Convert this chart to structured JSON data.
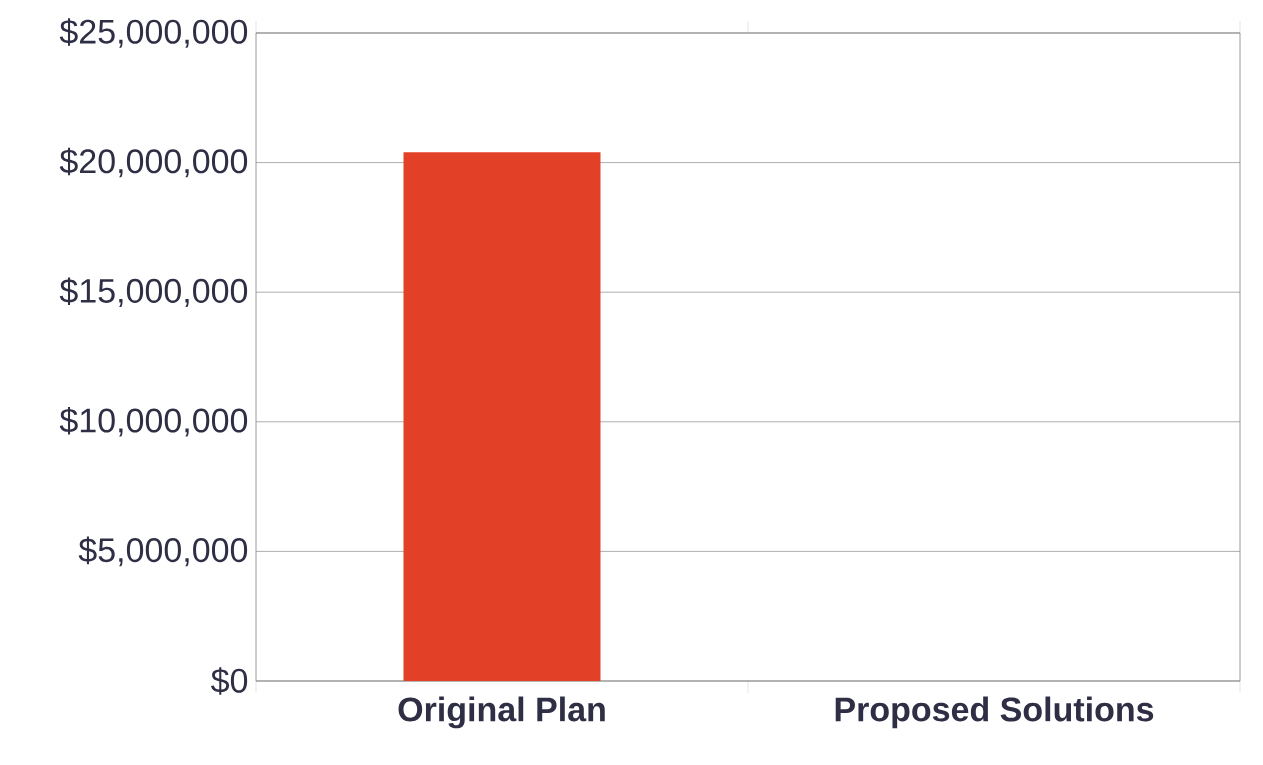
{
  "chart_data": {
    "type": "bar",
    "categories": [
      "Original Plan",
      "Proposed Solutions"
    ],
    "values": [
      20400000,
      null
    ],
    "color": "#e34127",
    "ylim": [
      0,
      25000000
    ],
    "yticks": [
      {
        "value": 0,
        "label": "$0"
      },
      {
        "value": 5000000,
        "label": "$5,000,000"
      },
      {
        "value": 10000000,
        "label": "$10,000,000"
      },
      {
        "value": 15000000,
        "label": "$15,000,000"
      },
      {
        "value": 20000000,
        "label": "$20,000,000"
      },
      {
        "value": 25000000,
        "label": "$25,000,000"
      }
    ],
    "grid": "y"
  }
}
